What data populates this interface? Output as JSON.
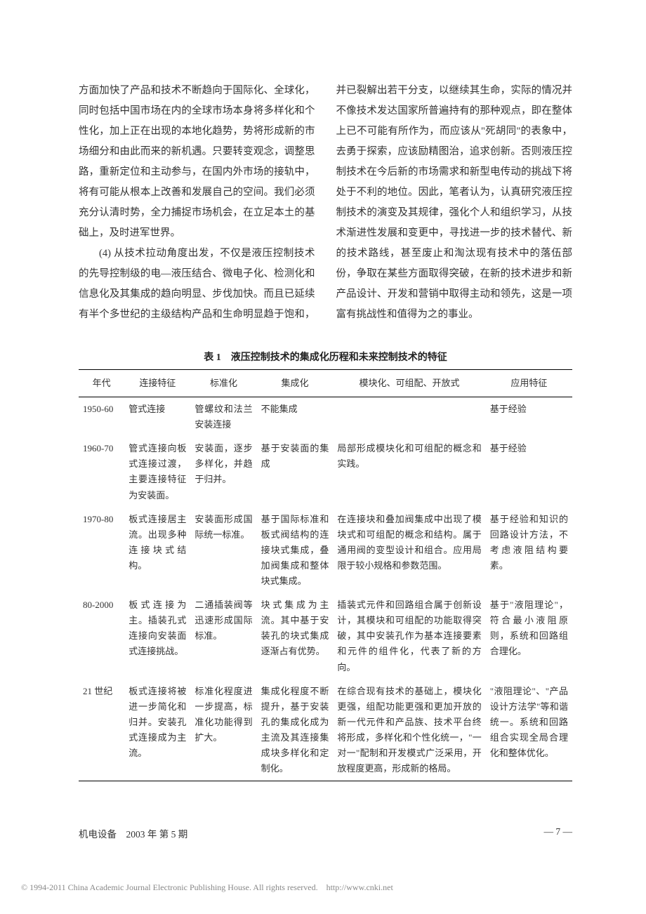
{
  "body_text": {
    "p1": "方面加快了产品和技术不断趋向于国际化、全球化，同时包括中国市场在内的全球市场本身将多样化和个性化，加上正在出现的本地化趋势，势将形成新的市场细分和由此而来的新机遇。只要转变观念，调整思路，重新定位和主动参与，在国内外市场的接轨中，将有可能从根本上改善和发展自己的空间。我们必须充分认清时势，全力捕捉市场机会，在立足本土的基础上，及时进军世界。",
    "p2": "(4) 从技术拉动角度出发，不仅是液压控制技术的先导控制级的电—液压结合、微电子化、检测化和信息化及其集成的趋向明显、步伐加快。而且已延续有半个多世纪的主级结构产品和生命明显趋于饱和，并已裂解出若干分支，以继续其生命，实际的情况并不像技术发达国家所普遍持有的那种观点，即在整体上已不可能有所作为，而应该从\"死胡同\"的表象中，去勇于探索，应该励精图治，追求创新。否则液压控制技术在今后新的市场需求和新型电传动的挑战下将处于不利的地位。因此，笔者认为，认真研究液压控制技术的演变及其规律，强化个人和组织学习，从技术渐进性发展和变更中，寻找进一步的技术替代、新的技术路线，甚至废止和淘汰现有技术中的落伍部份，争取在某些方面取得突破，在新的技术进步和新产品设计、开发和营销中取得主动和领先，这是一项富有挑战性和值得为之的事业。"
  },
  "table": {
    "caption": "表 1　液压控制技术的集成化历程和未来控制技术的特征",
    "headers": [
      "年代",
      "连接特征",
      "标准化",
      "集成化",
      "模块化、可组配、开放式",
      "应用特征"
    ],
    "rows": [
      {
        "era": "1950-60",
        "connection": "管式连接",
        "standardization": "管螺纹和法兰安装连接",
        "integration": "不能集成",
        "modularity": "",
        "application": "基于经验"
      },
      {
        "era": "1960-70",
        "connection": "管式连接向板式连接过渡，主要连接特征为安装面。",
        "standardization": "安装面，逐步多样化，并趋于归并。",
        "integration": "基于安装面的集成",
        "modularity": "局部形成模块化和可组配的概念和实践。",
        "application": "基于经验"
      },
      {
        "era": "1970-80",
        "connection": "板式连接居主流。出现多种连接块式结构。",
        "standardization": "安装面形成国际统一标准。",
        "integration": "基于国际标准和板式阀结构的连接块式集成，叠加阀集成和整体块式集成。",
        "modularity": "在连接块和叠加阀集成中出现了模块式和可组配的概念和结构。属于通用阀的变型设计和组合。应用局限于较小规格和参数范围。",
        "application": "基于经验和知识的回路设计方法，不考虑液阻结构要素。"
      },
      {
        "era": "80-2000",
        "connection": "板式连接为主。插装孔式连接向安装面式连接挑战。",
        "standardization": "二通插装阀等迅速形成国际标准。",
        "integration": "块式集成为主流。其中基于安装孔的块式集成逐渐占有优势。",
        "modularity": "插装式元件和回路组合属于创新设计，其模块和可组配的功能取得突破，其中安装孔作为基本连接要素和元件的组件化，代表了新的方向。",
        "application": "基于\"液阻理论\"，符合最小液阻原则，系统和回路组合理化。"
      },
      {
        "era": "21 世纪",
        "connection": "板式连接将被进一步简化和归并。安装孔式连接成为主流。",
        "standardization": "标准化程度进一步提高，标准化功能得到扩大。",
        "integration": "集成化程度不断提升，基于安装孔的集成化成为主流及其连接集成块多样化和定制化。",
        "modularity": "在综合现有技术的基础上，模块化更强，组配功能更强和更加开放的新一代元件和产品族、技术平台终将形成，多样化和个性化统一，\"一对一\"配制和开发模式广泛采用，开放程度更高，形成新的格局。",
        "application": "\"液阻理论\"、\"产品设计方法学\"等和谐统一。系统和回路组合实现全局合理化和整体优化。"
      }
    ]
  },
  "footer": {
    "left": "机电设备　2003 年 第 5 期",
    "right": "— 7 —"
  },
  "copyright_text": "© 1994-2011 China Academic Journal Electronic Publishing House. All rights reserved.　http://www.cnki.net"
}
